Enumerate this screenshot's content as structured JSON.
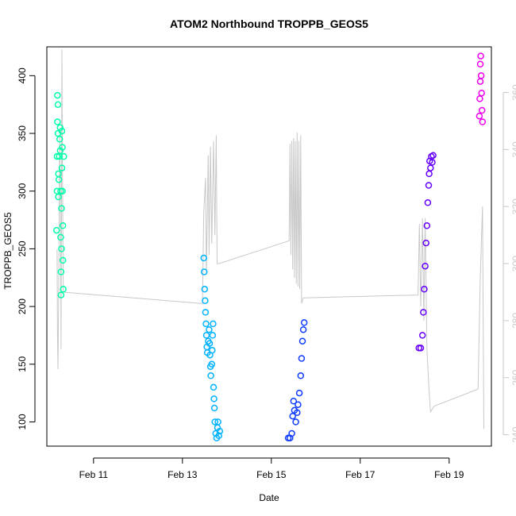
{
  "chart_data": {
    "type": "scatter",
    "title": "ATOM2 Northbound TROPPB_GEOS5",
    "xlabel": "Date",
    "ylabel": "TROPPB_GEOS5",
    "x_ticks": [
      "Feb 11",
      "Feb 13",
      "Feb 15",
      "Feb 17",
      "Feb 19"
    ],
    "x_tick_positions": [
      11,
      13,
      15,
      17,
      19
    ],
    "xlim": [
      9.95,
      19.95
    ],
    "ylim": [
      79,
      425
    ],
    "y_ticks": [
      100,
      150,
      200,
      250,
      300,
      350,
      400
    ],
    "y2lim": [
      236,
      376
    ],
    "y2_ticks": [
      240,
      260,
      280,
      300,
      320,
      340,
      360
    ],
    "grid": false,
    "series": [
      {
        "color": "#00ffaa",
        "points": [
          [
            10.17,
            266
          ],
          [
            10.18,
            300
          ],
          [
            10.18,
            330
          ],
          [
            10.19,
            360
          ],
          [
            10.19,
            383
          ],
          [
            10.2,
            375
          ],
          [
            10.2,
            350
          ],
          [
            10.21,
            315
          ],
          [
            10.21,
            295
          ],
          [
            10.22,
            310
          ],
          [
            10.23,
            330
          ],
          [
            10.24,
            345
          ],
          [
            10.25,
            355
          ],
          [
            10.25,
            335
          ],
          [
            10.26,
            300
          ],
          [
            10.26,
            260
          ],
          [
            10.27,
            230
          ],
          [
            10.27,
            210
          ],
          [
            10.28,
            250
          ],
          [
            10.28,
            285
          ],
          [
            10.29,
            320
          ],
          [
            10.29,
            352
          ],
          [
            10.3,
            338
          ],
          [
            10.3,
            300
          ],
          [
            10.31,
            270
          ],
          [
            10.31,
            240
          ],
          [
            10.32,
            215
          ],
          [
            10.33,
            330
          ]
        ]
      },
      {
        "color": "#00b2ff",
        "points": [
          [
            13.48,
            242
          ],
          [
            13.49,
            230
          ],
          [
            13.5,
            215
          ],
          [
            13.51,
            205
          ],
          [
            13.52,
            195
          ],
          [
            13.53,
            185
          ],
          [
            13.54,
            175
          ],
          [
            13.55,
            165
          ],
          [
            13.56,
            160
          ],
          [
            13.58,
            170
          ],
          [
            13.6,
            180
          ],
          [
            13.61,
            168
          ],
          [
            13.62,
            158
          ],
          [
            13.63,
            148
          ],
          [
            13.64,
            140
          ],
          [
            13.66,
            150
          ],
          [
            13.67,
            162
          ],
          [
            13.68,
            175
          ],
          [
            13.69,
            185
          ],
          [
            13.7,
            130
          ],
          [
            13.71,
            120
          ],
          [
            13.72,
            112
          ],
          [
            13.73,
            100
          ],
          [
            13.75,
            90
          ],
          [
            13.77,
            86
          ],
          [
            13.79,
            95
          ],
          [
            13.8,
            100
          ],
          [
            13.82,
            88
          ],
          [
            13.84,
            92
          ]
        ]
      },
      {
        "color": "#0f3cff",
        "points": [
          [
            15.38,
            86
          ],
          [
            15.42,
            86
          ],
          [
            15.46,
            90
          ],
          [
            15.48,
            105
          ],
          [
            15.5,
            118
          ],
          [
            15.52,
            110
          ],
          [
            15.55,
            100
          ],
          [
            15.58,
            108
          ],
          [
            15.6,
            115
          ],
          [
            15.63,
            125
          ],
          [
            15.66,
            140
          ],
          [
            15.68,
            155
          ],
          [
            15.7,
            170
          ],
          [
            15.72,
            180
          ],
          [
            15.74,
            186
          ]
        ]
      },
      {
        "color": "#6600ff",
        "points": [
          [
            18.32,
            164
          ],
          [
            18.36,
            164
          ],
          [
            18.4,
            175
          ],
          [
            18.42,
            195
          ],
          [
            18.44,
            215
          ],
          [
            18.46,
            235
          ],
          [
            18.48,
            255
          ],
          [
            18.5,
            270
          ],
          [
            18.52,
            290
          ],
          [
            18.54,
            305
          ],
          [
            18.55,
            315
          ],
          [
            18.56,
            326
          ],
          [
            18.58,
            320
          ],
          [
            18.6,
            330
          ],
          [
            18.62,
            325
          ],
          [
            18.64,
            331
          ]
        ]
      },
      {
        "color": "#ee00ee",
        "points": [
          [
            19.68,
            365
          ],
          [
            19.69,
            380
          ],
          [
            19.7,
            395
          ],
          [
            19.7,
            410
          ],
          [
            19.71,
            417
          ],
          [
            19.72,
            400
          ],
          [
            19.73,
            385
          ],
          [
            19.74,
            370
          ],
          [
            19.75,
            360
          ]
        ]
      }
    ],
    "secondary_line": {
      "color": "#c8c8c8",
      "points": [
        [
          10.18,
          305
        ],
        [
          10.19,
          275
        ],
        [
          10.2,
          263
        ],
        [
          10.22,
          295
        ],
        [
          10.24,
          345
        ],
        [
          10.26,
          310
        ],
        [
          10.27,
          270
        ],
        [
          10.29,
          375
        ],
        [
          10.3,
          335
        ],
        [
          10.32,
          290
        ],
        [
          13.45,
          286
        ],
        [
          13.48,
          318
        ],
        [
          13.52,
          330
        ],
        [
          13.54,
          296
        ],
        [
          13.58,
          338
        ],
        [
          13.6,
          303
        ],
        [
          13.63,
          341
        ],
        [
          13.66,
          307
        ],
        [
          13.7,
          343
        ],
        [
          13.73,
          310
        ],
        [
          13.76,
          345
        ],
        [
          13.78,
          300
        ],
        [
          13.82,
          300
        ],
        [
          15.4,
          308
        ],
        [
          15.42,
          342
        ],
        [
          15.44,
          303
        ],
        [
          15.46,
          343
        ],
        [
          15.48,
          298
        ],
        [
          15.5,
          344
        ],
        [
          15.52,
          295
        ],
        [
          15.54,
          343
        ],
        [
          15.56,
          293
        ],
        [
          15.58,
          346
        ],
        [
          15.6,
          292
        ],
        [
          15.62,
          343
        ],
        [
          15.64,
          291
        ],
        [
          15.66,
          345
        ],
        [
          15.68,
          286
        ],
        [
          15.72,
          288
        ],
        [
          18.3,
          289
        ],
        [
          18.33,
          314
        ],
        [
          18.36,
          285
        ],
        [
          18.4,
          316
        ],
        [
          18.43,
          280
        ],
        [
          18.46,
          316
        ],
        [
          18.5,
          270
        ],
        [
          18.55,
          255
        ],
        [
          18.58,
          248
        ],
        [
          18.66,
          250
        ],
        [
          19.65,
          256
        ],
        [
          19.7,
          295
        ],
        [
          19.75,
          320
        ],
        [
          19.78,
          242
        ]
      ]
    }
  }
}
